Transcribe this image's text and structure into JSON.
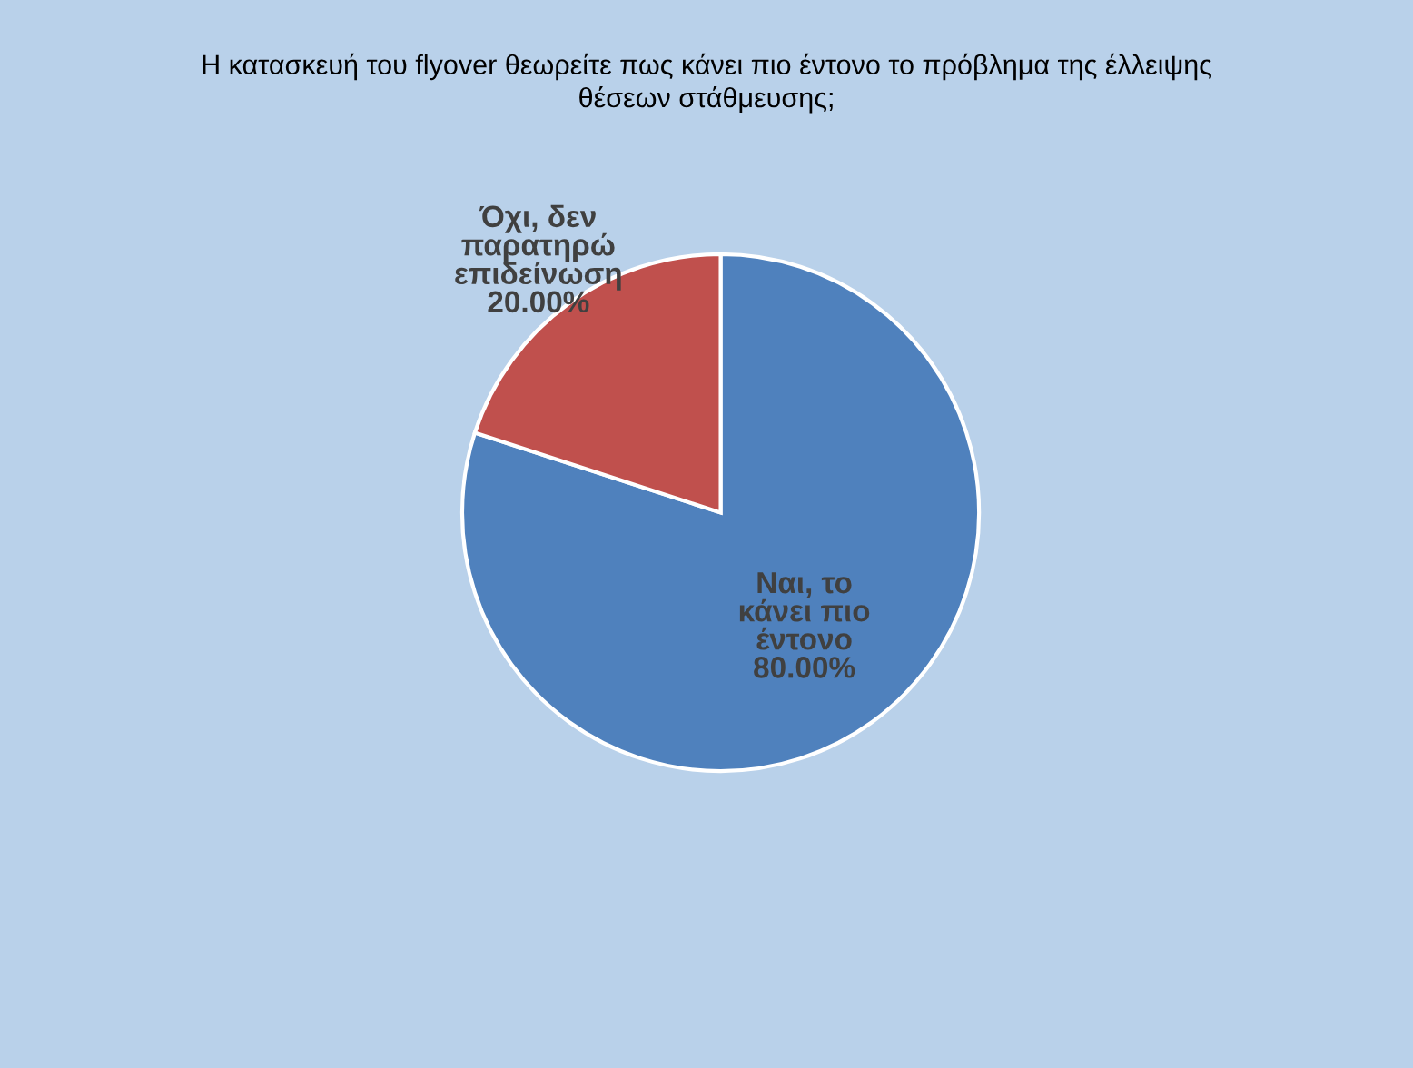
{
  "chart_data": {
    "type": "pie",
    "title": "Η κατασκευή του flyover θεωρείτε πως κάνει πιο έντονο το πρόβλημα της έλλειψης\nθέσεων στάθμευσης;",
    "categories": [
      "Ναι, το\nκάνει πιο\nέντονο",
      "Όχι, δεν\nπαρατηρώ\nεπιδείνωση"
    ],
    "values": [
      80,
      20
    ],
    "colors": [
      "#4f81bd",
      "#c0504d"
    ],
    "value_labels": [
      "80.00%",
      "20.00%"
    ],
    "legend": false
  }
}
